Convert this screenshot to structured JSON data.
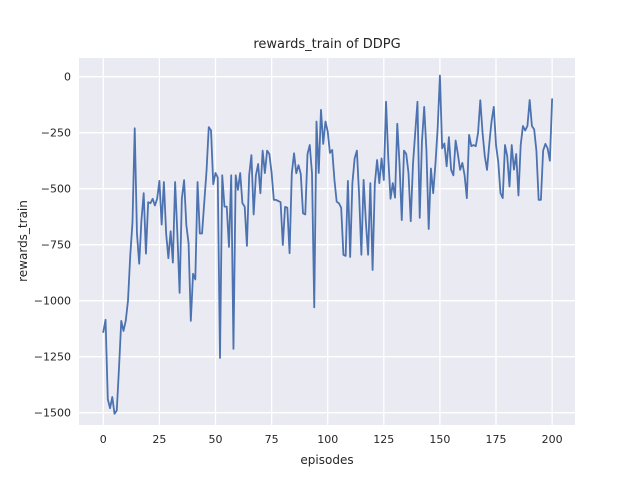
{
  "chart_data": {
    "type": "line",
    "title": "rewards_train of DDPG",
    "xlabel": "episodes",
    "ylabel": "rewards_train",
    "x": "index",
    "xlim": [
      -10.83,
      210.2
    ],
    "ylim": [
      -1555,
      83.5
    ],
    "x_tick_values": [
      0,
      25,
      50,
      75,
      100,
      125,
      150,
      175,
      200
    ],
    "x_tick_labels": [
      "0",
      "25",
      "50",
      "75",
      "100",
      "125",
      "150",
      "175",
      "200"
    ],
    "y_tick_values": [
      0,
      -250,
      -500,
      -750,
      -1000,
      -1250,
      -1500
    ],
    "y_tick_labels": [
      "0",
      "−250",
      "−500",
      "−750",
      "−1000",
      "−1250",
      "−1500"
    ],
    "grid": true,
    "legend": false,
    "colors": {
      "line": "#4c72b0",
      "plot_background": "#eaeaf2",
      "gridline": "#ffffff",
      "text": "#262626",
      "figure_background": "#ffffff"
    },
    "series": [
      {
        "name": "rewards_train",
        "values": [
          -1140,
          -1085,
          -1440,
          -1480,
          -1430,
          -1505,
          -1490,
          -1300,
          -1090,
          -1135,
          -1090,
          -1000,
          -800,
          -650,
          -230,
          -700,
          -835,
          -640,
          -520,
          -790,
          -560,
          -565,
          -545,
          -575,
          -545,
          -465,
          -660,
          -470,
          -700,
          -810,
          -690,
          -830,
          -470,
          -700,
          -965,
          -545,
          -462,
          -662,
          -744,
          -1090,
          -880,
          -905,
          -470,
          -700,
          -700,
          -560,
          -420,
          -225,
          -240,
          -480,
          -430,
          -450,
          -1256,
          -440,
          -580,
          -580,
          -760,
          -440,
          -1215,
          -440,
          -505,
          -430,
          -565,
          -580,
          -755,
          -440,
          -350,
          -615,
          -440,
          -390,
          -520,
          -330,
          -430,
          -330,
          -345,
          -430,
          -550,
          -550,
          -555,
          -560,
          -751,
          -581,
          -585,
          -788,
          -431,
          -342,
          -431,
          -395,
          -435,
          -610,
          -615,
          -345,
          -305,
          -431,
          -1030,
          -200,
          -430,
          -148,
          -300,
          -200,
          -245,
          -340,
          -327,
          -461,
          -558,
          -565,
          -585,
          -795,
          -800,
          -465,
          -805,
          -475,
          -365,
          -330,
          -528,
          -795,
          -461,
          -647,
          -795,
          -475,
          -863,
          -478,
          -372,
          -475,
          -365,
          -461,
          -112,
          -365,
          -545,
          -475,
          -540,
          -210,
          -390,
          -640,
          -330,
          -345,
          -430,
          -645,
          -390,
          -250,
          -112,
          -630,
          -290,
          -135,
          -330,
          -680,
          -410,
          -520,
          -390,
          -230,
          5,
          -320,
          -298,
          -400,
          -270,
          -416,
          -440,
          -285,
          -345,
          -416,
          -385,
          -440,
          -542,
          -260,
          -310,
          -305,
          -310,
          -250,
          -105,
          -250,
          -355,
          -416,
          -300,
          -200,
          -135,
          -305,
          -380,
          -520,
          -542,
          -305,
          -355,
          -490,
          -305,
          -415,
          -345,
          -530,
          -305,
          -220,
          -240,
          -220,
          -104,
          -220,
          -235,
          -330,
          -550,
          -550,
          -330,
          -300,
          -320,
          -375,
          -100
        ]
      }
    ]
  }
}
